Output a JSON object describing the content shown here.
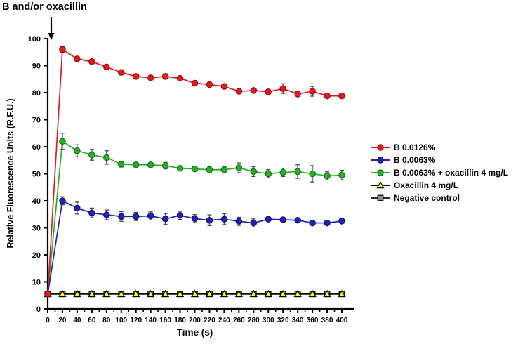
{
  "chart_data": {
    "type": "line",
    "title": "B and/or oxacillin",
    "annotation": {
      "text": "B and/or oxacillin",
      "arrow": "down",
      "arrow_points_to": "top of y-axis at time 0-5 s (injection point)"
    },
    "xlabel": "Time (s)",
    "ylabel": "Relative Fluorescence Units (R.F.U.)",
    "xlim": [
      0,
      400
    ],
    "ylim": [
      0,
      100
    ],
    "x_tick_step": 20,
    "x_minor_tick_step": 10,
    "y_tick_step": 10,
    "grid": false,
    "legend_position": "right",
    "error_bar_color": "#4a4a4a",
    "x": [
      0,
      20,
      40,
      60,
      80,
      100,
      120,
      140,
      160,
      180,
      200,
      220,
      240,
      260,
      280,
      300,
      320,
      340,
      360,
      380,
      400
    ],
    "series": [
      {
        "name": "B 0.0126%",
        "marker": "circle",
        "color": "#e01b22",
        "edge_color": "#97030c",
        "line_color": "#e01b22",
        "values": [
          5.5,
          96,
          92.5,
          91.5,
          89.5,
          87.5,
          86,
          85.5,
          86,
          85.3,
          83.5,
          83,
          82.3,
          80.5,
          80.8,
          80.3,
          81.5,
          79.5,
          80.5,
          78.8,
          78.8
        ],
        "errors": [
          0,
          1,
          0.8,
          0.8,
          0.8,
          0.8,
          0.8,
          0.8,
          1,
          0.8,
          0.8,
          0.8,
          0.8,
          0.8,
          0.8,
          0.8,
          1.8,
          0.8,
          1.8,
          0.8,
          0.8
        ]
      },
      {
        "name": "B 0.0063%",
        "marker": "circle",
        "color": "#2121bd",
        "edge_color": "#0d0d70",
        "line_color": "#2121bd",
        "values": [
          5.5,
          40,
          37.3,
          35.5,
          34.8,
          34.2,
          34.2,
          34.4,
          33.3,
          34.6,
          33.4,
          32.8,
          33.2,
          32.4,
          31.8,
          33.2,
          33,
          32.8,
          31.8,
          31.8,
          32.5
        ],
        "errors": [
          0,
          1.5,
          2.2,
          1.8,
          1.8,
          1.8,
          1.5,
          1.5,
          2,
          1.5,
          1.5,
          2,
          2,
          1.5,
          1.5,
          0,
          0,
          0,
          0,
          0,
          0
        ]
      },
      {
        "name": "B 0.0063% + oxacillin 4 mg/L",
        "marker": "circle",
        "color": "#25b125",
        "edge_color": "#0f6b0f",
        "line_color": "#25b125",
        "values": [
          5.5,
          62,
          58.5,
          57,
          56,
          53.5,
          53.3,
          53.3,
          53,
          52,
          51.8,
          51.5,
          51.5,
          52.2,
          50.8,
          50,
          50.5,
          50.8,
          50,
          49.2,
          49.5
        ],
        "errors": [
          0,
          3,
          2.2,
          2,
          2.5,
          1,
          0.8,
          0.8,
          1.2,
          0.8,
          0.8,
          1.2,
          1.2,
          1.8,
          1.8,
          1.5,
          1.5,
          2.5,
          3,
          1.5,
          1.8
        ]
      },
      {
        "name": "Oxacillin 4 mg/L",
        "marker": "triangle-up",
        "color": "#ffff00",
        "edge_color": "#000000",
        "line_color": "#000000",
        "values": [
          5.5,
          5.5,
          5.5,
          5.5,
          5.5,
          5.5,
          5.5,
          5.5,
          5.5,
          5.5,
          5.5,
          5.5,
          5.5,
          5.5,
          5.5,
          5.5,
          5.5,
          5.5,
          5.5,
          5.5,
          5.5
        ],
        "errors": [
          0,
          0,
          0,
          0,
          0,
          0,
          0,
          0,
          0,
          0,
          0,
          0,
          0,
          0,
          0,
          0,
          0,
          0,
          0,
          0,
          0
        ]
      },
      {
        "name": "Negative control",
        "marker": "square",
        "color": "#8c8c8c",
        "edge_color": "#000000",
        "line_color": "#2b2b2b",
        "values": [
          5.5,
          5.5,
          5.5,
          5.5,
          5.5,
          5.5,
          5.5,
          5.5,
          5.5,
          5.5,
          5.5,
          5.5,
          5.5,
          5.5,
          5.5,
          5.5,
          5.5,
          5.5,
          5.5,
          5.5,
          5.5
        ],
        "errors": [
          0,
          0,
          0,
          0,
          0,
          0,
          0,
          0,
          0,
          0,
          0,
          0,
          0,
          0,
          0,
          0,
          0,
          0,
          0,
          0,
          0
        ]
      }
    ]
  }
}
